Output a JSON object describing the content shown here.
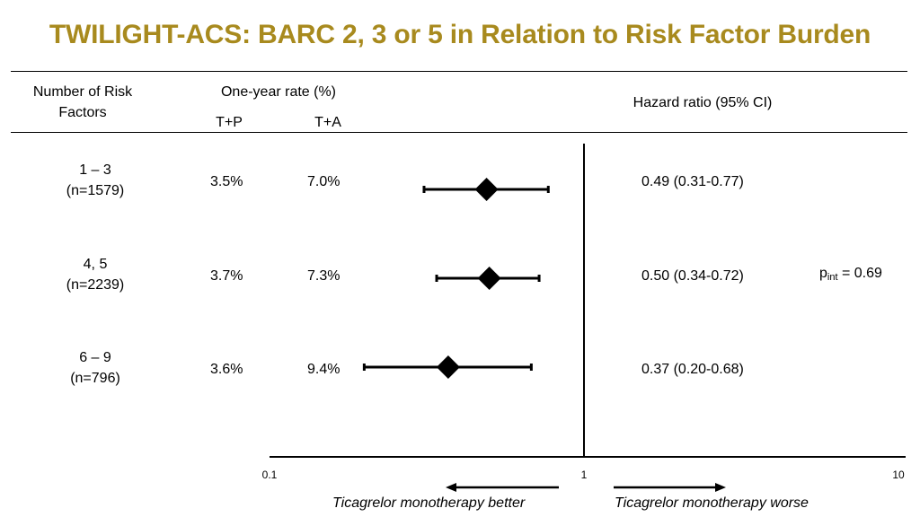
{
  "title": "TWILIGHT-ACS: BARC 2, 3 or 5 in Relation to Risk Factor Burden",
  "colors": {
    "title": "#a88a1e",
    "line": "#000000"
  },
  "header": {
    "group_label": "Number of Risk Factors",
    "rate_label": "One-year rate (%)",
    "tp_label": "T+P",
    "ta_label": "T+A",
    "hr_label": "Hazard ratio (95% CI)"
  },
  "rows": [
    {
      "group": "1 – 3",
      "n": "(n=1579)",
      "tp": "3.5%",
      "ta": "7.0%",
      "hr_text": "0.49 (0.31-0.77)"
    },
    {
      "group": "4, 5",
      "n": "(n=2239)",
      "tp": "3.7%",
      "ta": "7.3%",
      "hr_text": "0.50 (0.34-0.72)"
    },
    {
      "group": "6 – 9",
      "n": "(n=796)",
      "tp": "3.6%",
      "ta": "9.4%",
      "hr_text": "0.37 (0.20-0.68)"
    }
  ],
  "p_interaction": {
    "p": "p",
    "sub": "int",
    "value": " = 0.69"
  },
  "direction_labels": {
    "left": "Ticagrelor monotherapy better",
    "right": "Ticagrelor monotherapy worse"
  },
  "chart_data": {
    "type": "forest",
    "scale": "log",
    "xlim": [
      0.1,
      10
    ],
    "xticks": [
      0.1,
      1,
      10
    ],
    "xtick_labels": [
      "0.1",
      "1",
      "10"
    ],
    "reference_line": 1,
    "categories": [
      "1 – 3",
      "4, 5",
      "6 – 9"
    ],
    "series": [
      {
        "points": [
          {
            "hr": 0.49,
            "lo": 0.31,
            "hi": 0.77
          },
          {
            "hr": 0.5,
            "lo": 0.34,
            "hi": 0.72
          },
          {
            "hr": 0.37,
            "lo": 0.2,
            "hi": 0.68
          }
        ]
      }
    ]
  }
}
